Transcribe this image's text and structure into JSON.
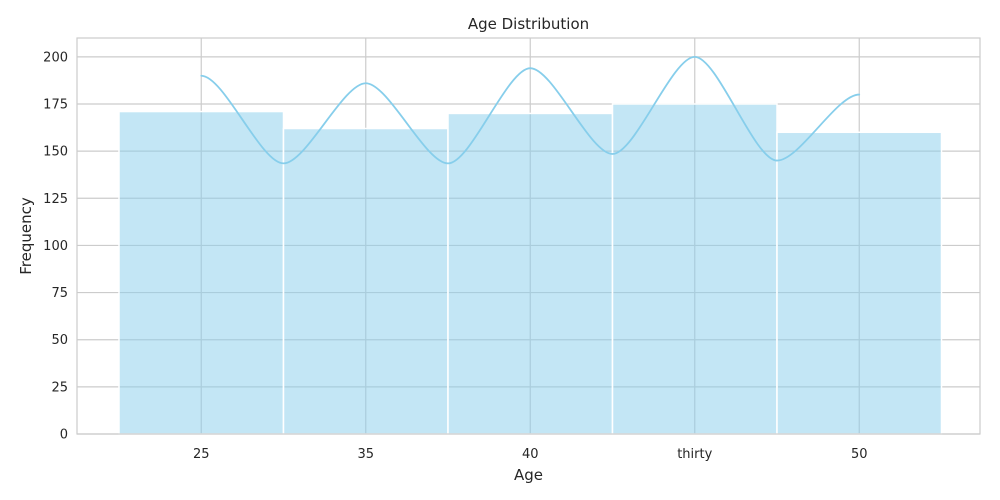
{
  "chart_data": {
    "type": "bar",
    "title": "Age Distribution",
    "xlabel": "Age",
    "ylabel": "Frequency",
    "categories": [
      "25",
      "35",
      "40",
      "thirty",
      "50"
    ],
    "values": [
      171,
      162,
      170,
      175,
      160
    ],
    "kde_line": [
      {
        "x": "25",
        "y": 190
      },
      {
        "x": "35",
        "y": 186
      },
      {
        "x": "40",
        "y": 194
      },
      {
        "x": "thirty",
        "y": 200
      },
      {
        "x": "50",
        "y": 180
      }
    ],
    "ylim": [
      0,
      210
    ],
    "yticks": [
      0,
      25,
      50,
      75,
      100,
      125,
      150,
      175,
      200
    ],
    "grid": true,
    "legend": "none",
    "colors": {
      "bar": "#87ceeb",
      "line": "#87ceeb",
      "grid": "#cccccc",
      "text": "#262626"
    }
  }
}
